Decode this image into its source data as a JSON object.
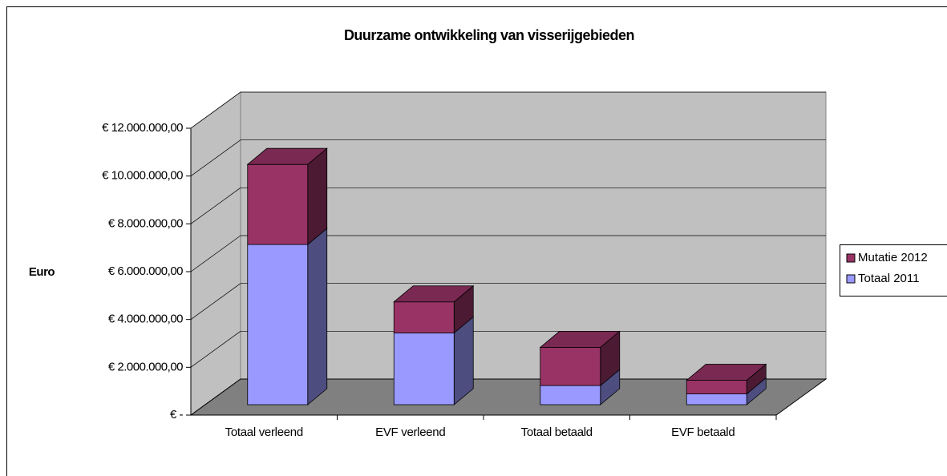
{
  "chart_data": {
    "type": "bar3d_stacked",
    "title": "Duurzame ontwikkeling van visserijgebieden",
    "ylabel": "Euro",
    "categories": [
      "Totaal verleend",
      "EVF verleend",
      "Totaal betaald",
      "EVF betaald"
    ],
    "series": [
      {
        "name": "Totaal 2011",
        "color": "#9999ff",
        "values": [
          6700000,
          3000000,
          800000,
          450000
        ]
      },
      {
        "name": "Mutatie 2012",
        "color": "#993366",
        "values": [
          3350000,
          1300000,
          1600000,
          570000
        ]
      }
    ],
    "ylim": [
      0,
      12000000
    ],
    "yticks": [
      {
        "value": 0,
        "label": "€ -"
      },
      {
        "value": 2000000,
        "label": "€ 2.000.000,00"
      },
      {
        "value": 4000000,
        "label": "€ 4.000.000,00"
      },
      {
        "value": 6000000,
        "label": "€ 6.000.000,00"
      },
      {
        "value": 8000000,
        "label": "€ 8.000.000,00"
      },
      {
        "value": 10000000,
        "label": "€ 10.000.000,00"
      },
      {
        "value": 12000000,
        "label": "€ 12.000.000,00"
      }
    ],
    "grid": true,
    "legend": "right"
  }
}
